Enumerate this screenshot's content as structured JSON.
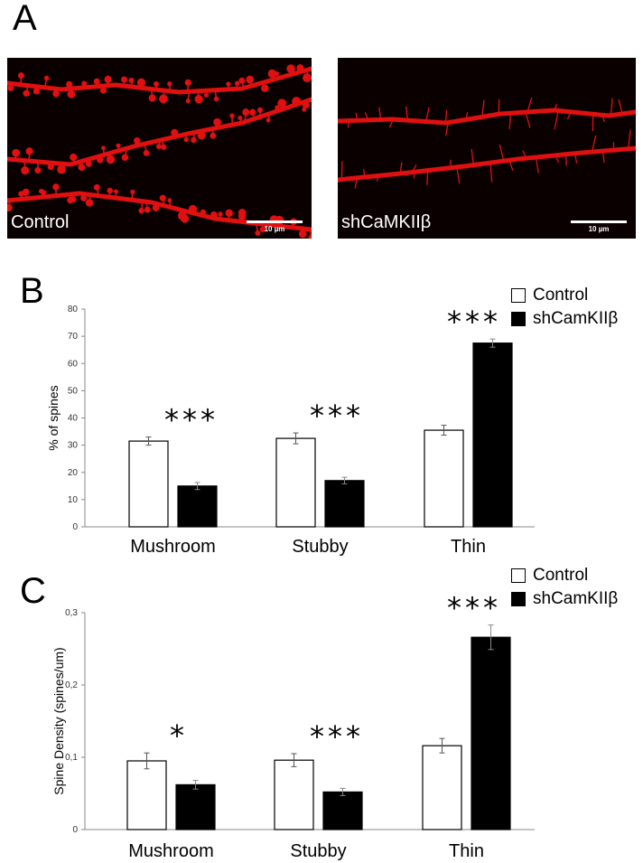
{
  "panels": {
    "a": {
      "letter": "A",
      "images": [
        {
          "label": "Control",
          "scale_bar": "10 µm",
          "style": "mushroom"
        },
        {
          "label": "shCaMKIIβ",
          "scale_bar": "10 µm",
          "style": "thin"
        }
      ],
      "colors": {
        "background": "#0a0000",
        "dendrite": "#e01010"
      }
    },
    "b": {
      "letter": "B"
    },
    "c": {
      "letter": "C"
    }
  },
  "legend": {
    "control": "Control",
    "sh": "shCamKIIβ",
    "colors": {
      "control": "#ffffff",
      "sh": "#000000"
    }
  },
  "chart_data": [
    {
      "type": "bar",
      "ylabel": "% of spines",
      "ylim": [
        0,
        80
      ],
      "yticks": [
        "0",
        "10",
        "20",
        "30",
        "40",
        "50",
        "60",
        "70",
        "80"
      ],
      "categories": [
        "Mushroom",
        "Stubby",
        "Thin"
      ],
      "series": [
        {
          "name": "Control",
          "values": [
            31.5,
            32.5,
            35.5
          ],
          "errors": [
            1.5,
            2.0,
            1.8
          ],
          "color": "#ffffff"
        },
        {
          "name": "shCamKIIβ",
          "values": [
            15,
            17,
            67.5
          ],
          "errors": [
            1.3,
            1.2,
            1.5
          ],
          "color": "#000000"
        }
      ],
      "significance": [
        "***",
        "***",
        "***"
      ],
      "legend": "top-right"
    },
    {
      "type": "bar",
      "ylabel": "Spine Density (spines/um)",
      "ylim": [
        0,
        0.3
      ],
      "yticks": [
        "0",
        "0,1",
        "0,2",
        "0,3"
      ],
      "categories": [
        "Mushroom",
        "Stubby",
        "Thin"
      ],
      "series": [
        {
          "name": "Control",
          "values": [
            0.095,
            0.096,
            0.116
          ],
          "errors": [
            0.011,
            0.009,
            0.01
          ],
          "color": "#ffffff"
        },
        {
          "name": "shCamKIIβ",
          "values": [
            0.062,
            0.052,
            0.266
          ],
          "errors": [
            0.006,
            0.005,
            0.017
          ],
          "color": "#000000"
        }
      ],
      "significance": [
        "*",
        "***",
        "***"
      ],
      "legend": "top-right"
    }
  ]
}
